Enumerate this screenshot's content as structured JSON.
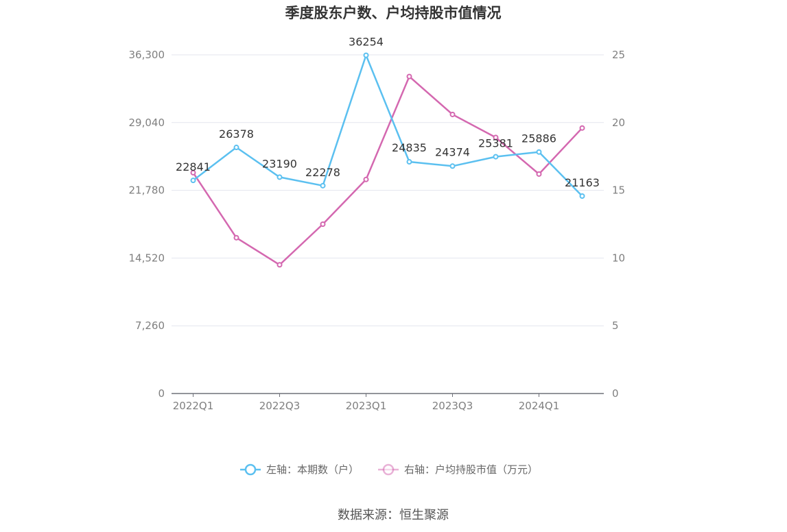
{
  "chart_data": {
    "type": "line",
    "title": "季度股东户数、户均持股市值情况",
    "categories": [
      "2022Q1",
      "2022Q2",
      "2022Q3",
      "2022Q4",
      "2023Q1",
      "2023Q2",
      "2023Q3",
      "2023Q4",
      "2024Q1",
      "2024Q2"
    ],
    "x_tick_labels": [
      "2022Q1",
      "2022Q3",
      "2023Q1",
      "2023Q3",
      "2024Q1"
    ],
    "left_axis": {
      "ticks": [
        "0",
        "7,260",
        "14,520",
        "21,780",
        "29,040",
        "36,300"
      ],
      "min": 0,
      "max": 36300
    },
    "right_axis": {
      "ticks": [
        "0",
        "5",
        "10",
        "15",
        "20",
        "25"
      ],
      "min": 0,
      "max": 25
    },
    "grid": true,
    "legend_position": "bottom",
    "series": [
      {
        "name": "左轴：本期数（户）",
        "axis": "left",
        "color": "#5bc0f0",
        "values": [
          22841,
          26378,
          23190,
          22278,
          36254,
          24835,
          24374,
          25381,
          25886,
          21163
        ],
        "labels": [
          "22841",
          "26378",
          "23190",
          "22278",
          "36254",
          "24835",
          "24374",
          "25381",
          "25886",
          "21163"
        ]
      },
      {
        "name": "右轴：户均持股市值（万元）",
        "axis": "right",
        "color": "#d468b0",
        "values": [
          16.3,
          11.5,
          9.5,
          12.5,
          15.8,
          23.4,
          20.6,
          18.9,
          16.2,
          19.6
        ]
      }
    ]
  },
  "source_text": "数据来源：恒生聚源"
}
